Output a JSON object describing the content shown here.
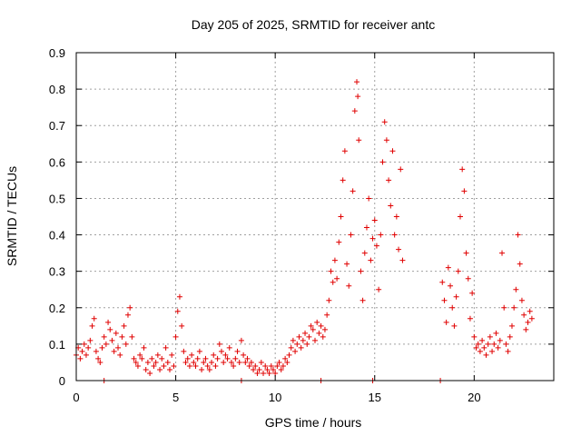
{
  "chart_data": {
    "type": "scatter",
    "title": "Day 205 of 2025, SRMTID for receiver antc",
    "xlabel": "GPS time / hours",
    "ylabel": "SRMTID / TECUs",
    "xlim": [
      0,
      24
    ],
    "ylim": [
      0,
      0.9
    ],
    "xticks": [
      0,
      5,
      10,
      15,
      20
    ],
    "yticks": [
      0,
      0.1,
      0.2,
      0.3,
      0.4,
      0.5,
      0.6,
      0.7,
      0.8,
      0.9
    ],
    "xtick_labels": [
      "0",
      "5",
      "10",
      "15",
      "20"
    ],
    "ytick_labels": [
      "0",
      "0.1",
      "0.2",
      "0.3",
      "0.4",
      "0.5",
      "0.6",
      "0.7",
      "0.8",
      "0.9"
    ],
    "grid": true,
    "marker": "+",
    "color": "#e00000",
    "series": [
      {
        "name": "SRMTID",
        "points": [
          [
            0.0,
            0.07
          ],
          [
            0.1,
            0.09
          ],
          [
            0.2,
            0.06
          ],
          [
            0.3,
            0.08
          ],
          [
            0.4,
            0.1
          ],
          [
            0.5,
            0.07
          ],
          [
            0.6,
            0.09
          ],
          [
            0.7,
            0.11
          ],
          [
            0.8,
            0.15
          ],
          [
            0.9,
            0.17
          ],
          [
            1.0,
            0.08
          ],
          [
            1.1,
            0.06
          ],
          [
            1.2,
            0.05
          ],
          [
            1.3,
            0.09
          ],
          [
            1.4,
            0.12
          ],
          [
            1.5,
            0.1
          ],
          [
            1.6,
            0.16
          ],
          [
            1.7,
            0.14
          ],
          [
            1.8,
            0.11
          ],
          [
            1.9,
            0.08
          ],
          [
            2.0,
            0.13
          ],
          [
            2.1,
            0.09
          ],
          [
            2.2,
            0.07
          ],
          [
            2.3,
            0.12
          ],
          [
            2.4,
            0.15
          ],
          [
            2.5,
            0.1
          ],
          [
            2.6,
            0.18
          ],
          [
            2.7,
            0.2
          ],
          [
            2.8,
            0.12
          ],
          [
            2.9,
            0.06
          ],
          [
            3.0,
            0.05
          ],
          [
            3.1,
            0.04
          ],
          [
            3.2,
            0.07
          ],
          [
            3.3,
            0.06
          ],
          [
            3.4,
            0.09
          ],
          [
            3.5,
            0.03
          ],
          [
            3.6,
            0.05
          ],
          [
            3.7,
            0.02
          ],
          [
            3.8,
            0.06
          ],
          [
            3.9,
            0.04
          ],
          [
            4.0,
            0.05
          ],
          [
            4.1,
            0.07
          ],
          [
            4.2,
            0.03
          ],
          [
            4.3,
            0.06
          ],
          [
            4.4,
            0.04
          ],
          [
            4.5,
            0.09
          ],
          [
            4.6,
            0.05
          ],
          [
            4.7,
            0.03
          ],
          [
            4.8,
            0.07
          ],
          [
            4.9,
            0.04
          ],
          [
            5.0,
            0.12
          ],
          [
            5.1,
            0.19
          ],
          [
            5.2,
            0.23
          ],
          [
            5.3,
            0.15
          ],
          [
            5.4,
            0.08
          ],
          [
            5.5,
            0.05
          ],
          [
            5.6,
            0.06
          ],
          [
            5.7,
            0.04
          ],
          [
            5.8,
            0.07
          ],
          [
            5.9,
            0.05
          ],
          [
            6.0,
            0.04
          ],
          [
            6.1,
            0.06
          ],
          [
            6.2,
            0.08
          ],
          [
            6.3,
            0.03
          ],
          [
            6.4,
            0.05
          ],
          [
            6.5,
            0.06
          ],
          [
            6.6,
            0.04
          ],
          [
            6.7,
            0.03
          ],
          [
            6.8,
            0.05
          ],
          [
            6.9,
            0.07
          ],
          [
            7.0,
            0.04
          ],
          [
            7.1,
            0.06
          ],
          [
            7.2,
            0.1
          ],
          [
            7.3,
            0.08
          ],
          [
            7.4,
            0.05
          ],
          [
            7.5,
            0.07
          ],
          [
            7.6,
            0.06
          ],
          [
            7.7,
            0.09
          ],
          [
            7.8,
            0.05
          ],
          [
            7.9,
            0.04
          ],
          [
            8.0,
            0.06
          ],
          [
            8.1,
            0.08
          ],
          [
            8.2,
            0.05
          ],
          [
            8.3,
            0.11
          ],
          [
            8.4,
            0.07
          ],
          [
            8.5,
            0.05
          ],
          [
            8.6,
            0.06
          ],
          [
            8.7,
            0.04
          ],
          [
            8.8,
            0.05
          ],
          [
            8.9,
            0.03
          ],
          [
            9.0,
            0.04
          ],
          [
            9.1,
            0.02
          ],
          [
            9.2,
            0.03
          ],
          [
            9.3,
            0.05
          ],
          [
            9.4,
            0.02
          ],
          [
            9.5,
            0.04
          ],
          [
            9.6,
            0.03
          ],
          [
            9.7,
            0.02
          ],
          [
            9.8,
            0.04
          ],
          [
            9.9,
            0.03
          ],
          [
            10.0,
            0.02
          ],
          [
            10.1,
            0.04
          ],
          [
            10.2,
            0.05
          ],
          [
            10.3,
            0.03
          ],
          [
            10.4,
            0.04
          ],
          [
            10.5,
            0.06
          ],
          [
            10.6,
            0.05
          ],
          [
            10.7,
            0.07
          ],
          [
            10.8,
            0.09
          ],
          [
            10.9,
            0.11
          ],
          [
            11.0,
            0.08
          ],
          [
            11.1,
            0.1
          ],
          [
            11.2,
            0.12
          ],
          [
            11.3,
            0.09
          ],
          [
            11.4,
            0.11
          ],
          [
            11.5,
            0.13
          ],
          [
            11.6,
            0.1
          ],
          [
            11.7,
            0.12
          ],
          [
            11.8,
            0.15
          ],
          [
            11.9,
            0.14
          ],
          [
            12.0,
            0.11
          ],
          [
            12.1,
            0.16
          ],
          [
            12.2,
            0.13
          ],
          [
            12.3,
            0.15
          ],
          [
            12.4,
            0.12
          ],
          [
            12.5,
            0.14
          ],
          [
            12.6,
            0.18
          ],
          [
            12.7,
            0.22
          ],
          [
            12.8,
            0.3
          ],
          [
            12.9,
            0.27
          ],
          [
            13.0,
            0.33
          ],
          [
            13.1,
            0.28
          ],
          [
            13.2,
            0.38
          ],
          [
            13.3,
            0.45
          ],
          [
            13.4,
            0.55
          ],
          [
            13.5,
            0.63
          ],
          [
            13.6,
            0.32
          ],
          [
            13.7,
            0.26
          ],
          [
            13.8,
            0.4
          ],
          [
            13.9,
            0.52
          ],
          [
            14.0,
            0.74
          ],
          [
            14.1,
            0.82
          ],
          [
            14.15,
            0.78
          ],
          [
            14.2,
            0.66
          ],
          [
            14.3,
            0.3
          ],
          [
            14.4,
            0.22
          ],
          [
            14.5,
            0.35
          ],
          [
            14.6,
            0.42
          ],
          [
            14.7,
            0.5
          ],
          [
            14.8,
            0.33
          ],
          [
            14.9,
            0.39
          ],
          [
            15.0,
            0.44
          ],
          [
            15.1,
            0.37
          ],
          [
            15.2,
            0.25
          ],
          [
            15.3,
            0.4
          ],
          [
            15.4,
            0.6
          ],
          [
            15.5,
            0.71
          ],
          [
            15.6,
            0.66
          ],
          [
            15.7,
            0.55
          ],
          [
            15.8,
            0.48
          ],
          [
            15.9,
            0.63
          ],
          [
            16.0,
            0.4
          ],
          [
            16.1,
            0.45
          ],
          [
            16.2,
            0.36
          ],
          [
            16.3,
            0.58
          ],
          [
            16.4,
            0.33
          ],
          [
            18.4,
            0.27
          ],
          [
            18.5,
            0.22
          ],
          [
            18.6,
            0.16
          ],
          [
            18.7,
            0.31
          ],
          [
            18.8,
            0.26
          ],
          [
            18.9,
            0.2
          ],
          [
            19.0,
            0.15
          ],
          [
            19.1,
            0.23
          ],
          [
            19.2,
            0.3
          ],
          [
            19.3,
            0.45
          ],
          [
            19.4,
            0.58
          ],
          [
            19.5,
            0.52
          ],
          [
            19.6,
            0.35
          ],
          [
            19.7,
            0.28
          ],
          [
            19.8,
            0.17
          ],
          [
            19.9,
            0.24
          ],
          [
            20.0,
            0.12
          ],
          [
            20.1,
            0.09
          ],
          [
            20.2,
            0.1
          ],
          [
            20.3,
            0.08
          ],
          [
            20.4,
            0.11
          ],
          [
            20.5,
            0.09
          ],
          [
            20.6,
            0.07
          ],
          [
            20.7,
            0.1
          ],
          [
            20.8,
            0.12
          ],
          [
            20.9,
            0.08
          ],
          [
            21.0,
            0.1
          ],
          [
            21.1,
            0.13
          ],
          [
            21.2,
            0.09
          ],
          [
            21.3,
            0.11
          ],
          [
            21.4,
            0.35
          ],
          [
            21.5,
            0.2
          ],
          [
            21.6,
            0.1
          ],
          [
            21.7,
            0.08
          ],
          [
            21.8,
            0.12
          ],
          [
            21.9,
            0.15
          ],
          [
            22.0,
            0.2
          ],
          [
            22.1,
            0.25
          ],
          [
            22.2,
            0.4
          ],
          [
            22.3,
            0.32
          ],
          [
            22.4,
            0.22
          ],
          [
            22.5,
            0.18
          ],
          [
            22.6,
            0.14
          ],
          [
            22.7,
            0.16
          ],
          [
            22.8,
            0.19
          ],
          [
            22.9,
            0.17
          ],
          [
            12.3,
            0.0
          ],
          [
            14.9,
            0.0
          ],
          [
            18.3,
            0.0
          ],
          [
            1.4,
            0.0
          ],
          [
            8.3,
            0.0
          ]
        ]
      }
    ]
  }
}
